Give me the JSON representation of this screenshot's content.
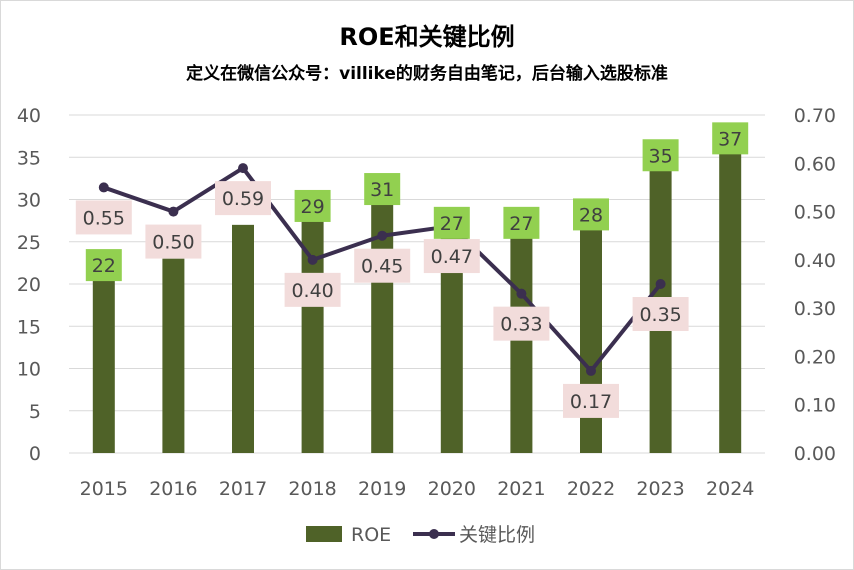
{
  "colors": {
    "bar": "#4F6228",
    "line": "#3B2F4F",
    "bar_label_bg": "#92D050",
    "line_label_bg": "#F2DCDB",
    "grid": "#D9D9D9",
    "axis_text": "#595959"
  },
  "chart_data": {
    "type": "bar",
    "title": "ROE和关键比例",
    "subtitle": "定义在微信公众号：villike的财务自由笔记，后台输入选股标准",
    "categories": [
      "2015",
      "2016",
      "2017",
      "2018",
      "2019",
      "2020",
      "2021",
      "2022",
      "2023",
      "2024"
    ],
    "series": [
      {
        "name": "ROE",
        "type": "bar",
        "axis": "left",
        "values": [
          22,
          23,
          27,
          29,
          31,
          27,
          27,
          28,
          35,
          37
        ],
        "labels": [
          "22",
          "",
          "",
          "29",
          "31",
          "27",
          "27",
          "28",
          "35",
          "37"
        ]
      },
      {
        "name": "关键比例",
        "type": "line",
        "axis": "right",
        "values": [
          0.55,
          0.5,
          0.59,
          0.4,
          0.45,
          0.47,
          0.33,
          0.17,
          0.35,
          null
        ],
        "labels": [
          "0.55",
          "0.50",
          "0.59",
          "0.40",
          "0.45",
          "0.47",
          "0.33",
          "0.17",
          "0.35",
          ""
        ]
      }
    ],
    "y_left": {
      "min": 0,
      "max": 40,
      "ticks": [
        "0",
        "5",
        "10",
        "15",
        "20",
        "25",
        "30",
        "35",
        "40"
      ]
    },
    "y_right": {
      "min": 0,
      "max": 0.7,
      "ticks": [
        "0.00",
        "0.10",
        "0.20",
        "0.30",
        "0.40",
        "0.50",
        "0.60",
        "0.70"
      ]
    },
    "grid": true,
    "legend": {
      "position": "bottom",
      "items": [
        "ROE",
        "关键比例"
      ]
    }
  }
}
